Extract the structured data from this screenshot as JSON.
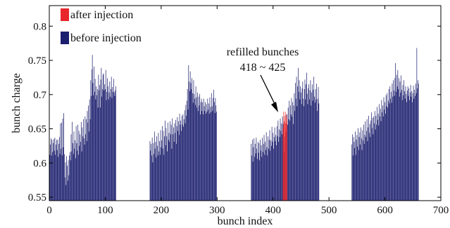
{
  "chart_data": {
    "type": "bar",
    "xlabel": "bunch index",
    "ylabel": "bunch charge",
    "xlim": [
      0,
      700
    ],
    "ylim": [
      0.545,
      0.83
    ],
    "xticks": [
      0,
      100,
      200,
      300,
      400,
      500,
      600,
      700
    ],
    "yticks": [
      0.55,
      0.6,
      0.65,
      0.7,
      0.75,
      0.8
    ],
    "ytick_labels": [
      "0.55",
      "0.6",
      "0.65",
      "0.7",
      "0.75",
      "0.8"
    ],
    "legend": {
      "position": "top-left",
      "entries": [
        {
          "name": "after injection",
          "color": "#e8262b"
        },
        {
          "name": "before injection",
          "color": "#1c1f6e"
        }
      ]
    },
    "annotation": {
      "lines": [
        "refilled bunches",
        "418 ~ 425"
      ],
      "x": 421,
      "y": 0.668
    },
    "series": [
      {
        "name": "before injection",
        "color": "#1c1f6e",
        "segments": [
          {
            "x_start": 0,
            "values": [
              0.623,
              0.612,
              0.627,
              0.636,
              0.611,
              0.634,
              0.616,
              0.629,
              0.635,
              0.618,
              0.637,
              0.612,
              0.627,
              0.634,
              0.619,
              0.634,
              0.609,
              0.628,
              0.638,
              0.613,
              0.658,
              0.621,
              0.659,
              0.611,
              0.665,
              0.623,
              0.673,
              0.613,
              0.579,
              0.601,
              0.568,
              0.61,
              0.596,
              0.574,
              0.604,
              0.582,
              0.611,
              0.616,
              0.604,
              0.642,
              0.617,
              0.66,
              0.629,
              0.613,
              0.646,
              0.621,
              0.633,
              0.607,
              0.654,
              0.629,
              0.618,
              0.656,
              0.612,
              0.647,
              0.625,
              0.642,
              0.631,
              0.66,
              0.617,
              0.652,
              0.639,
              0.664,
              0.636,
              0.627,
              0.668,
              0.642,
              0.664,
              0.632,
              0.676,
              0.659,
              0.684,
              0.646,
              0.693,
              0.664,
              0.721,
              0.698,
              0.737,
              0.758,
              0.717,
              0.699,
              0.741,
              0.704,
              0.723,
              0.693,
              0.712,
              0.699,
              0.708,
              0.681,
              0.729,
              0.706,
              0.714,
              0.681,
              0.722,
              0.739,
              0.697,
              0.708,
              0.729,
              0.731,
              0.706,
              0.715,
              0.708,
              0.736,
              0.692,
              0.704,
              0.724,
              0.712,
              0.693,
              0.703,
              0.719,
              0.697,
              0.708,
              0.726,
              0.695,
              0.711,
              0.704,
              0.723,
              0.703,
              0.698,
              0.706,
              0.712
            ]
          },
          {
            "x_start": 180,
            "values": [
              0.632,
              0.618,
              0.628,
              0.611,
              0.637,
              0.601,
              0.629,
              0.613,
              0.646,
              0.621,
              0.631,
              0.608,
              0.639,
              0.625,
              0.611,
              0.644,
              0.617,
              0.632,
              0.612,
              0.648,
              0.623,
              0.633,
              0.654,
              0.621,
              0.647,
              0.612,
              0.639,
              0.662,
              0.626,
              0.651,
              0.639,
              0.617,
              0.659,
              0.634,
              0.644,
              0.631,
              0.661,
              0.642,
              0.656,
              0.621,
              0.665,
              0.642,
              0.652,
              0.631,
              0.658,
              0.644,
              0.663,
              0.628,
              0.654,
              0.667,
              0.647,
              0.661,
              0.641,
              0.672,
              0.656,
              0.662,
              0.647,
              0.669,
              0.656,
              0.671,
              0.653,
              0.664,
              0.677,
              0.658,
              0.685,
              0.669,
              0.691,
              0.708,
              0.678,
              0.743,
              0.719,
              0.705,
              0.734,
              0.717,
              0.708,
              0.724,
              0.702,
              0.688,
              0.721,
              0.701,
              0.694,
              0.685,
              0.712,
              0.696,
              0.681,
              0.703,
              0.676,
              0.697,
              0.684,
              0.701,
              0.671,
              0.689,
              0.694,
              0.676,
              0.689,
              0.671,
              0.694,
              0.683,
              0.676,
              0.689,
              0.672,
              0.686,
              0.675,
              0.694,
              0.678,
              0.687,
              0.672,
              0.696,
              0.682,
              0.674,
              0.702,
              0.683,
              0.676,
              0.695,
              0.707,
              0.689,
              0.673,
              0.695,
              0.684,
              0.675
            ]
          },
          {
            "x_start": 361,
            "values": [
              0.628,
              0.611,
              0.634,
              0.602,
              0.623,
              0.636,
              0.609,
              0.628,
              0.614,
              0.637,
              0.621,
              0.606,
              0.631,
              0.615,
              0.629,
              0.604,
              0.634,
              0.618,
              0.626,
              0.609,
              0.637,
              0.616,
              0.628,
              0.641,
              0.612,
              0.631,
              0.619,
              0.645,
              0.623,
              0.611,
              0.639,
              0.621,
              0.634,
              0.648,
              0.618,
              0.633,
              0.625,
              0.653,
              0.631,
              0.644,
              0.621,
              0.638,
              0.652,
              0.632,
              0.641,
              0.626,
              0.654,
              0.639,
              0.662,
              0.631,
              0.649,
              0.638,
              0.665,
              0.647,
              0.658,
              0.642,
              0.668,
              0.657,
              0.637,
              0.616,
              0.639,
              0.629,
              0.646,
              0.651,
              0.671,
              0.656,
              0.681,
              0.664,
              0.691,
              0.662,
              0.684,
              0.671,
              0.695,
              0.668,
              0.689,
              0.657,
              0.684,
              0.702,
              0.676,
              0.717,
              0.694,
              0.726,
              0.683,
              0.712,
              0.739,
              0.704,
              0.721,
              0.693,
              0.712,
              0.703,
              0.686,
              0.709,
              0.719,
              0.694,
              0.683,
              0.708,
              0.722,
              0.693,
              0.715,
              0.732,
              0.701,
              0.686,
              0.709,
              0.715,
              0.693,
              0.706,
              0.721,
              0.684,
              0.703,
              0.715,
              0.691,
              0.707,
              0.726,
              0.697,
              0.688,
              0.708,
              0.693,
              0.716,
              0.676,
              0.694,
              0.711,
              0.687
            ]
          },
          {
            "x_start": 541,
            "values": [
              0.627,
              0.642,
              0.611,
              0.638,
              0.631,
              0.622,
              0.646,
              0.612,
              0.634,
              0.641,
              0.624,
              0.651,
              0.619,
              0.638,
              0.645,
              0.627,
              0.652,
              0.636,
              0.619,
              0.648,
              0.633,
              0.656,
              0.628,
              0.641,
              0.661,
              0.638,
              0.647,
              0.664,
              0.632,
              0.652,
              0.669,
              0.644,
              0.657,
              0.638,
              0.662,
              0.674,
              0.651,
              0.666,
              0.642,
              0.668,
              0.658,
              0.676,
              0.649,
              0.669,
              0.656,
              0.682,
              0.663,
              0.672,
              0.655,
              0.686,
              0.668,
              0.679,
              0.661,
              0.692,
              0.674,
              0.684,
              0.668,
              0.696,
              0.678,
              0.689,
              0.672,
              0.699,
              0.683,
              0.702,
              0.681,
              0.691,
              0.708,
              0.687,
              0.712,
              0.694,
              0.704,
              0.688,
              0.716,
              0.697,
              0.721,
              0.706,
              0.698,
              0.724,
              0.746,
              0.704,
              0.729,
              0.712,
              0.736,
              0.708,
              0.724,
              0.697,
              0.719,
              0.703,
              0.728,
              0.707,
              0.692,
              0.714,
              0.699,
              0.721,
              0.705,
              0.694,
              0.712,
              0.701,
              0.689,
              0.706,
              0.712,
              0.698,
              0.709,
              0.692,
              0.703,
              0.714,
              0.697,
              0.705,
              0.689,
              0.702,
              0.713,
              0.694,
              0.707,
              0.698,
              0.716,
              0.702,
              0.768,
              0.709,
              0.721,
              0.716
            ]
          }
        ]
      },
      {
        "name": "after injection",
        "color": "#e8262b",
        "segments": [
          {
            "x_start": 418,
            "values": [
              0.652,
              0.675,
              0.661,
              0.669,
              0.675,
              0.658,
              0.671,
              0.666
            ]
          }
        ]
      }
    ]
  }
}
